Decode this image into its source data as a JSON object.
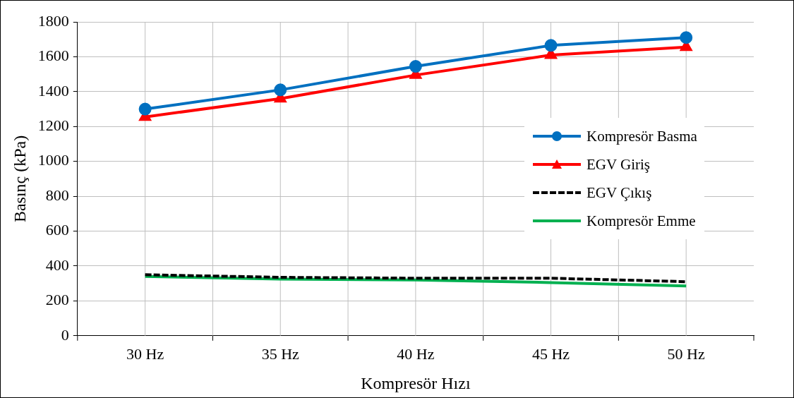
{
  "chart_data": {
    "type": "line",
    "xlabel": "Kompresör Hızı",
    "ylabel": "Basınç (kPa)",
    "categories": [
      "30 Hz",
      "35 Hz",
      "40 Hz",
      "45 Hz",
      "50 Hz"
    ],
    "series": [
      {
        "name": "Kompresör Basma",
        "color": "#0070c0",
        "marker": "circle",
        "line_style": "solid",
        "values": [
          1300,
          1410,
          1545,
          1665,
          1710
        ]
      },
      {
        "name": "EGV Giriş",
        "color": "#ff0000",
        "marker": "triangle",
        "line_style": "solid",
        "values": [
          1255,
          1360,
          1495,
          1610,
          1655
        ]
      },
      {
        "name": "EGV Çıkış",
        "color": "#000000",
        "marker": "none",
        "line_style": "dashed",
        "values": [
          350,
          335,
          330,
          330,
          310
        ]
      },
      {
        "name": "Kompresör Emme",
        "color": "#00b050",
        "marker": "none",
        "line_style": "solid",
        "values": [
          340,
          325,
          320,
          305,
          285
        ]
      }
    ],
    "ylim": [
      0,
      1800
    ],
    "yticks": [
      0,
      200,
      400,
      600,
      800,
      1000,
      1200,
      1400,
      1600,
      1800
    ],
    "grid": true,
    "legend": "right"
  }
}
